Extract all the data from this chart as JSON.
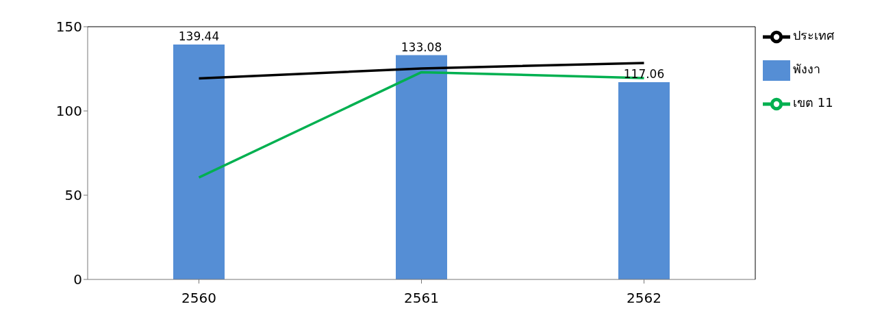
{
  "chart_data": {
    "type": "bar",
    "categories": [
      "2560",
      "2561",
      "2562"
    ],
    "series": [
      {
        "name": "พังงา",
        "color": "#558ed5",
        "values": [
          139.44,
          133.08,
          117.06
        ],
        "value_labels": [
          "139.44",
          "133.08",
          "117.06"
        ]
      },
      {
        "name": "ประเทศ",
        "type": "line",
        "color": "#000000",
        "values": [
          119.3,
          125.2,
          128.5
        ]
      },
      {
        "name": "เขต 11",
        "type": "line",
        "color": "#00b050",
        "values": [
          60.5,
          123,
          119.5
        ]
      }
    ],
    "ylim": [
      0,
      150
    ],
    "yticks": [
      0,
      50,
      100,
      150
    ],
    "grid": false,
    "legend": "right",
    "marker": "none"
  }
}
